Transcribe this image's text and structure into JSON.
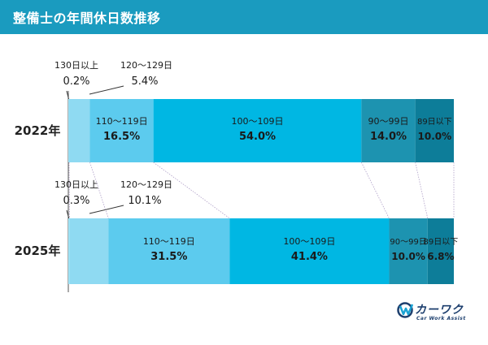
{
  "header": {
    "title": "整備士の年間休日数推移"
  },
  "chart_data": {
    "type": "bar",
    "orientation": "horizontal-stacked-100",
    "title": "整備士の年間休日数推移",
    "categories": [
      "130日以上",
      "120～129日",
      "110～119日",
      "100～109日",
      "90～99日",
      "89日以下"
    ],
    "colors": [
      "#a0e4f7",
      "#8fdaf2",
      "#5ccbee",
      "#00b7e3",
      "#1d93b0",
      "#0d7d99"
    ],
    "unit": "%",
    "series": [
      {
        "name": "2022年",
        "values": [
          0.2,
          5.4,
          16.5,
          54.0,
          14.0,
          10.0
        ],
        "labels": [
          "0.2%",
          "5.4%",
          "16.5%",
          "54.0%",
          "14.0%",
          "10.0%"
        ]
      },
      {
        "name": "2025年",
        "values": [
          0.3,
          10.1,
          31.5,
          41.4,
          10.0,
          6.8
        ],
        "labels": [
          "0.3%",
          "10.1%",
          "31.5%",
          "41.4%",
          "10.0%",
          "6.8%"
        ]
      }
    ]
  },
  "logo": {
    "main": "カーワク",
    "sub": "Car Work Assist",
    "icon": "cw-logo-icon",
    "color": "#1d3f6e"
  }
}
